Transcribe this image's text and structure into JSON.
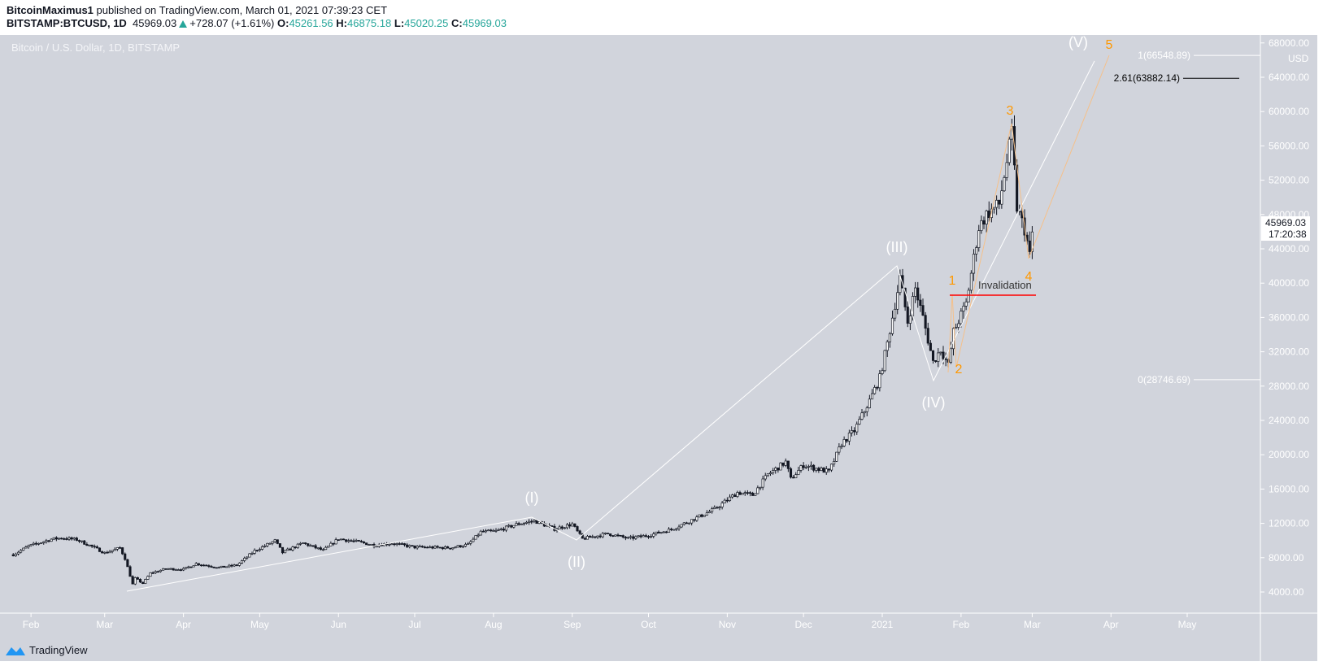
{
  "header": {
    "author": "BitcoinMaximus1",
    "published": "published on TradingView.com, March 01, 2021 07:39:23 CET",
    "symbol": "BITSTAMP:BTCUSD, 1D",
    "last": "45969.03",
    "change": "+728.07 (+1.61%)",
    "o_label": "O:",
    "o": "45261.56",
    "h_label": "H:",
    "h": "46875.18",
    "l_label": "L:",
    "l": "45020.25",
    "c_label": "C:",
    "c": "45969.03"
  },
  "chart_title": "Bitcoin / U.S. Dollar, 1D, BITSTAMP",
  "currency": "USD",
  "price_label": {
    "value": "45969.03",
    "countdown": "17:20:38"
  },
  "footer": {
    "brand": "TradingView"
  },
  "colors": {
    "background": "#d1d4dc",
    "wave_white": "#ffffff",
    "wave_orange": "#ff9800",
    "invalidation": "#ff0000",
    "up_change": "#26a69a"
  },
  "chart_data": {
    "type": "candlestick",
    "title": "Bitcoin / U.S. Dollar, 1D, BITSTAMP",
    "ylim": [
      1000,
      69000
    ],
    "yticks": [
      "4000.00",
      "8000.00",
      "12000.00",
      "16000.00",
      "20000.00",
      "24000.00",
      "28000.00",
      "32000.00",
      "36000.00",
      "40000.00",
      "44000.00",
      "48000.00",
      "52000.00",
      "56000.00",
      "60000.00",
      "64000.00",
      "68000.00"
    ],
    "xticks": [
      "Feb",
      "Mar",
      "Apr",
      "May",
      "Jun",
      "Jul",
      "Aug",
      "Sep",
      "Oct",
      "Nov",
      "Dec",
      "2021",
      "Feb",
      "Mar",
      "Apr",
      "May"
    ],
    "close_series": [
      [
        "2020-01-25",
        8350
      ],
      [
        "2020-01-31",
        9350
      ],
      [
        "2020-02-09",
        10150
      ],
      [
        "2020-02-13",
        10300
      ],
      [
        "2020-02-19",
        10100
      ],
      [
        "2020-02-25",
        9300
      ],
      [
        "2020-03-01",
        8550
      ],
      [
        "2020-03-07",
        9150
      ],
      [
        "2020-03-09",
        7900
      ],
      [
        "2020-03-12",
        4900
      ],
      [
        "2020-03-13",
        5600
      ],
      [
        "2020-03-16",
        5000
      ],
      [
        "2020-03-19",
        6200
      ],
      [
        "2020-03-25",
        6700
      ],
      [
        "2020-04-01",
        6650
      ],
      [
        "2020-04-06",
        7300
      ],
      [
        "2020-04-15",
        6850
      ],
      [
        "2020-04-22",
        7130
      ],
      [
        "2020-04-29",
        8800
      ],
      [
        "2020-05-07",
        9980
      ],
      [
        "2020-05-10",
        8600
      ],
      [
        "2020-05-18",
        9700
      ],
      [
        "2020-05-26",
        8840
      ],
      [
        "2020-06-01",
        10200
      ],
      [
        "2020-06-10",
        9770
      ],
      [
        "2020-06-15",
        9450
      ],
      [
        "2020-06-22",
        9680
      ],
      [
        "2020-07-01",
        9230
      ],
      [
        "2020-07-15",
        9150
      ],
      [
        "2020-07-22",
        9530
      ],
      [
        "2020-07-27",
        11000
      ],
      [
        "2020-08-02",
        11100
      ],
      [
        "2020-08-10",
        11880
      ],
      [
        "2020-08-17",
        12300
      ],
      [
        "2020-08-25",
        11350
      ],
      [
        "2020-09-01",
        11900
      ],
      [
        "2020-09-05",
        10200
      ],
      [
        "2020-09-15",
        10800
      ],
      [
        "2020-09-23",
        10240
      ],
      [
        "2020-10-01",
        10600
      ],
      [
        "2020-10-10",
        11300
      ],
      [
        "2020-10-21",
        12800
      ],
      [
        "2020-10-27",
        13650
      ],
      [
        "2020-11-05",
        15600
      ],
      [
        "2020-11-11",
        15300
      ],
      [
        "2020-11-17",
        17700
      ],
      [
        "2020-11-24",
        19150
      ],
      [
        "2020-11-26",
        17150
      ],
      [
        "2020-12-01",
        18800
      ],
      [
        "2020-12-11",
        18000
      ],
      [
        "2020-12-16",
        21300
      ],
      [
        "2020-12-21",
        22800
      ],
      [
        "2020-12-27",
        26300
      ],
      [
        "2020-12-31",
        28950
      ],
      [
        "2021-01-03",
        33000
      ],
      [
        "2021-01-08",
        40600
      ],
      [
        "2021-01-11",
        35500
      ],
      [
        "2021-01-14",
        39400
      ],
      [
        "2021-01-17",
        36000
      ],
      [
        "2021-01-21",
        30800
      ],
      [
        "2021-01-24",
        32300
      ],
      [
        "2021-01-27",
        30400
      ],
      [
        "2021-01-29",
        34300
      ],
      [
        "2021-02-03",
        37600
      ],
      [
        "2021-02-08",
        46500
      ],
      [
        "2021-02-11",
        48000
      ],
      [
        "2021-02-16",
        49200
      ],
      [
        "2021-02-21",
        57500
      ],
      [
        "2021-02-23",
        48800
      ],
      [
        "2021-02-26",
        46300
      ],
      [
        "2021-02-28",
        43200
      ],
      [
        "2021-03-01",
        45969.03
      ]
    ],
    "fib_levels": [
      {
        "label": "1(66548.89)",
        "price": 66548.89,
        "color": "#ffffff"
      },
      {
        "label": "2.61(63882.14)",
        "price": 63882.14,
        "color": "#000000"
      },
      {
        "label": "0(28746.69)",
        "price": 28746.69,
        "color": "#ffffff"
      }
    ],
    "invalidation": {
      "label": "Invalidation",
      "price": 38600
    },
    "wave_labels_major": [
      "(I)",
      "(II)",
      "(III)",
      "(IV)",
      "(V)"
    ],
    "wave_labels_minor": [
      "1",
      "2",
      "3",
      "4",
      "5"
    ]
  }
}
